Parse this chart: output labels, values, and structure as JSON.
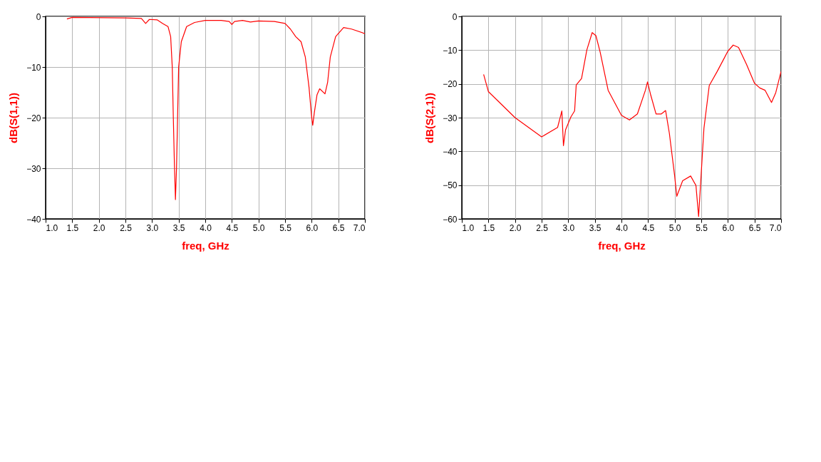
{
  "chart_data": [
    {
      "type": "line",
      "xlabel": "freq, GHz",
      "ylabel": "dB(S(1,1))",
      "grid": true,
      "legend": false,
      "xlim": [
        1.0,
        7.0
      ],
      "ylim": [
        -40,
        0
      ],
      "xticks": [
        {
          "value": 1.0,
          "label": "1.0"
        },
        {
          "value": 1.5,
          "label": "1.5"
        },
        {
          "value": 2.0,
          "label": "2.0"
        },
        {
          "value": 2.5,
          "label": "2.5"
        },
        {
          "value": 3.0,
          "label": "3.0"
        },
        {
          "value": 3.5,
          "label": "3.5"
        },
        {
          "value": 4.0,
          "label": "4.0"
        },
        {
          "value": 4.5,
          "label": "4.5"
        },
        {
          "value": 5.0,
          "label": "5.0"
        },
        {
          "value": 5.5,
          "label": "5.5"
        },
        {
          "value": 6.0,
          "label": "6.0"
        },
        {
          "value": 6.5,
          "label": "6.5"
        },
        {
          "value": 7.0,
          "label": "7.0"
        }
      ],
      "yticks": [
        -40,
        -30,
        -20,
        -10,
        0
      ],
      "series": [
        {
          "color": "#ff0000",
          "x": [
            1.4,
            1.5,
            2.5,
            2.8,
            2.88,
            2.95,
            3.1,
            3.2,
            3.3,
            3.35,
            3.38,
            3.4,
            3.42,
            3.44,
            3.46,
            3.48,
            3.5,
            3.55,
            3.65,
            3.8,
            4.0,
            4.3,
            4.45,
            4.5,
            4.55,
            4.7,
            4.85,
            5.0,
            5.3,
            5.5,
            5.6,
            5.7,
            5.8,
            5.88,
            5.95,
            6.0,
            6.02,
            6.05,
            6.1,
            6.15,
            6.25,
            6.3,
            6.35,
            6.45,
            6.6,
            6.75,
            7.0
          ],
          "values": [
            -0.5,
            -0.2,
            -0.3,
            -0.4,
            -1.4,
            -0.6,
            -0.7,
            -1.4,
            -2,
            -4,
            -10,
            -20,
            -29,
            -36.2,
            -30,
            -20,
            -10,
            -5,
            -2,
            -1.2,
            -0.8,
            -0.8,
            -1,
            -1.6,
            -1,
            -0.8,
            -1.1,
            -0.9,
            -1,
            -1.4,
            -2.5,
            -4,
            -5,
            -8,
            -14,
            -20,
            -21.5,
            -19,
            -15.5,
            -14.3,
            -15.3,
            -13,
            -8,
            -4,
            -2.2,
            -2.5,
            -3.4
          ]
        }
      ]
    },
    {
      "type": "line",
      "xlabel": "freq, GHz",
      "ylabel": "dB(S(2,1))",
      "grid": true,
      "legend": false,
      "xlim": [
        1.0,
        7.0
      ],
      "ylim": [
        -60,
        0
      ],
      "xticks": [
        {
          "value": 1.0,
          "label": "1.0"
        },
        {
          "value": 1.5,
          "label": "1.5"
        },
        {
          "value": 2.0,
          "label": "2.0"
        },
        {
          "value": 2.5,
          "label": "2.5"
        },
        {
          "value": 3.0,
          "label": "3.0"
        },
        {
          "value": 3.5,
          "label": "3.5"
        },
        {
          "value": 4.0,
          "label": "4.0"
        },
        {
          "value": 4.5,
          "label": "4.5"
        },
        {
          "value": 5.0,
          "label": "5.0"
        },
        {
          "value": 5.5,
          "label": "5.5"
        },
        {
          "value": 6.0,
          "label": "6.0"
        },
        {
          "value": 6.5,
          "label": "6.5"
        },
        {
          "value": 7.0,
          "label": "7.0"
        }
      ],
      "yticks": [
        -60,
        -50,
        -40,
        -30,
        -20,
        -10,
        0
      ],
      "series": [
        {
          "color": "#ff0000",
          "x": [
            1.41,
            1.5,
            2.0,
            2.5,
            2.8,
            2.88,
            2.91,
            2.95,
            3.05,
            3.12,
            3.15,
            3.25,
            3.35,
            3.45,
            3.52,
            3.6,
            3.75,
            4.0,
            4.15,
            4.3,
            4.45,
            4.49,
            4.55,
            4.65,
            4.75,
            4.83,
            4.9,
            5.0,
            5.04,
            5.15,
            5.3,
            5.4,
            5.45,
            5.48,
            5.55,
            5.65,
            5.8,
            6.0,
            6.1,
            6.2,
            6.35,
            6.5,
            6.6,
            6.7,
            6.82,
            6.9,
            7.0
          ],
          "values": [
            -17.2,
            -22.3,
            -30,
            -35.7,
            -32.9,
            -28,
            -38.3,
            -33.6,
            -29.8,
            -28,
            -20.3,
            -18.4,
            -9.9,
            -4.8,
            -5.7,
            -10.6,
            -21.9,
            -29.3,
            -30.7,
            -28.9,
            -21.9,
            -19.4,
            -23.3,
            -28.9,
            -28.9,
            -27.9,
            -34.6,
            -47.3,
            -53.3,
            -48.7,
            -47.3,
            -50.1,
            -59.3,
            -51.5,
            -33.2,
            -20.5,
            -16.3,
            -10.3,
            -8.5,
            -9.2,
            -14.2,
            -19.8,
            -21.2,
            -21.9,
            -25.5,
            -22.6,
            -16.3
          ]
        }
      ]
    }
  ]
}
